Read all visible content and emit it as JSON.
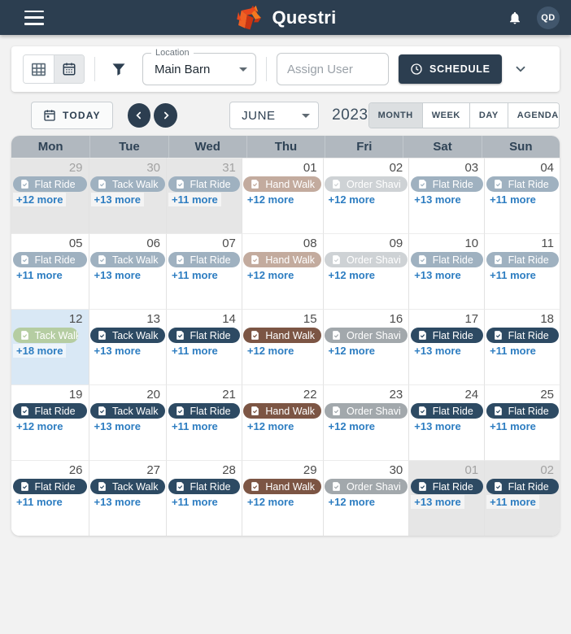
{
  "header": {
    "title": "Questri",
    "avatar_initials": "QD"
  },
  "toolbar": {
    "location_label": "Location",
    "location_value": "Main Barn",
    "assign_user_placeholder": "Assign User",
    "schedule_label": "SCHEDULE"
  },
  "controls": {
    "today_label": "TODAY",
    "month_value": "JUNE",
    "year": "2023",
    "views": [
      "MONTH",
      "WEEK",
      "DAY",
      "AGENDA"
    ],
    "active_view": "MONTH"
  },
  "colors": {
    "navy": "#2d4a63",
    "navy_faded": "#9fb1c0",
    "brown": "#7c5544",
    "brown_faded": "#c3ab9e",
    "gray": "#a2a8ac",
    "gray_faded": "#ced2d5",
    "green": "#b5cda2",
    "accent_blue": "#2d7dc1",
    "appbar_bg": "#2c3e50"
  },
  "calendar": {
    "day_headers": [
      "Mon",
      "Tue",
      "Wed",
      "Thu",
      "Fri",
      "Sat",
      "Sun"
    ],
    "weeks": [
      [
        {
          "day": "29",
          "other_month": true,
          "event_label": "Flat Ride",
          "event_color": "navy_faded",
          "more_label": "+12 more"
        },
        {
          "day": "30",
          "other_month": true,
          "event_label": "Tack Walk",
          "event_color": "navy_faded",
          "more_label": "+13 more"
        },
        {
          "day": "31",
          "other_month": true,
          "event_label": "Flat Ride",
          "event_color": "navy_faded",
          "more_label": "+11 more"
        },
        {
          "day": "01",
          "event_label": "Hand Walk",
          "event_color": "brown_faded",
          "more_label": "+12 more"
        },
        {
          "day": "02",
          "event_label": "Order Shavi",
          "event_color": "gray_faded",
          "more_label": "+12 more"
        },
        {
          "day": "03",
          "event_label": "Flat Ride",
          "event_color": "navy_faded",
          "more_label": "+13 more"
        },
        {
          "day": "04",
          "event_label": "Flat Ride",
          "event_color": "navy_faded",
          "more_label": "+11 more"
        }
      ],
      [
        {
          "day": "05",
          "event_label": "Flat Ride",
          "event_color": "navy_faded",
          "more_label": "+11 more"
        },
        {
          "day": "06",
          "event_label": "Tack Walk",
          "event_color": "navy_faded",
          "more_label": "+13 more"
        },
        {
          "day": "07",
          "event_label": "Flat Ride",
          "event_color": "navy_faded",
          "more_label": "+11 more"
        },
        {
          "day": "08",
          "event_label": "Hand Walk",
          "event_color": "brown_faded",
          "more_label": "+12 more"
        },
        {
          "day": "09",
          "event_label": "Order Shavi",
          "event_color": "gray_faded",
          "more_label": "+12 more"
        },
        {
          "day": "10",
          "event_label": "Flat Ride",
          "event_color": "navy_faded",
          "more_label": "+13 more"
        },
        {
          "day": "11",
          "event_label": "Flat Ride",
          "event_color": "navy_faded",
          "more_label": "+11 more"
        }
      ],
      [
        {
          "day": "12",
          "today": true,
          "short_pill": true,
          "event_label": "Tack Walk",
          "event_color": "green",
          "more_label": "+18 more"
        },
        {
          "day": "13",
          "event_label": "Tack Walk",
          "event_color": "navy",
          "more_label": "+13 more"
        },
        {
          "day": "14",
          "event_label": "Flat Ride",
          "event_color": "navy",
          "more_label": "+11 more"
        },
        {
          "day": "15",
          "event_label": "Hand Walk",
          "event_color": "brown",
          "more_label": "+12 more"
        },
        {
          "day": "16",
          "event_label": "Order Shavi",
          "event_color": "gray",
          "more_label": "+12 more"
        },
        {
          "day": "17",
          "event_label": "Flat Ride",
          "event_color": "navy",
          "more_label": "+13 more"
        },
        {
          "day": "18",
          "event_label": "Flat Ride",
          "event_color": "navy",
          "more_label": "+11 more"
        }
      ],
      [
        {
          "day": "19",
          "event_label": "Flat Ride",
          "event_color": "navy",
          "more_label": "+12 more"
        },
        {
          "day": "20",
          "event_label": "Tack Walk",
          "event_color": "navy",
          "more_label": "+13 more"
        },
        {
          "day": "21",
          "event_label": "Flat Ride",
          "event_color": "navy",
          "more_label": "+11 more"
        },
        {
          "day": "22",
          "event_label": "Hand Walk",
          "event_color": "brown",
          "more_label": "+12 more"
        },
        {
          "day": "23",
          "event_label": "Order Shavi",
          "event_color": "gray",
          "more_label": "+12 more"
        },
        {
          "day": "24",
          "event_label": "Flat Ride",
          "event_color": "navy",
          "more_label": "+13 more"
        },
        {
          "day": "25",
          "event_label": "Flat Ride",
          "event_color": "navy",
          "more_label": "+11 more"
        }
      ],
      [
        {
          "day": "26",
          "event_label": "Flat Ride",
          "event_color": "navy",
          "more_label": "+11 more"
        },
        {
          "day": "27",
          "event_label": "Tack Walk",
          "event_color": "navy",
          "more_label": "+13 more"
        },
        {
          "day": "28",
          "event_label": "Flat Ride",
          "event_color": "navy",
          "more_label": "+11 more"
        },
        {
          "day": "29",
          "event_label": "Hand Walk",
          "event_color": "brown",
          "more_label": "+12 more"
        },
        {
          "day": "30",
          "event_label": "Order Shavi",
          "event_color": "gray",
          "more_label": "+12 more"
        },
        {
          "day": "01",
          "other_month": true,
          "event_label": "Flat Ride",
          "event_color": "navy",
          "more_label": "+13 more"
        },
        {
          "day": "02",
          "other_month": true,
          "event_label": "Flat Ride",
          "event_color": "navy",
          "more_label": "+11 more"
        }
      ]
    ]
  }
}
